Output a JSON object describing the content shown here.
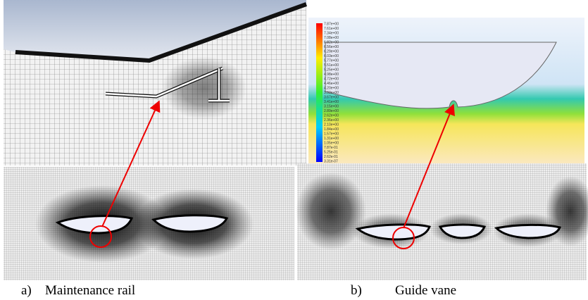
{
  "panels": {
    "left": {
      "label": "a)",
      "caption": "Maintenance rail"
    },
    "right": {
      "label": "b)",
      "caption": "Guide vane"
    }
  },
  "colorbar": {
    "labels": [
      "7.87e+00",
      "7.61e+00",
      "7.34e+00",
      "7.08e+00",
      "6.82e+00",
      "6.56e+00",
      "6.29e+00",
      "6.03e+00",
      "5.77e+00",
      "5.51e+00",
      "5.25e+00",
      "4.98e+00",
      "4.72e+00",
      "4.46e+00",
      "4.20e+00",
      "3.93e+00",
      "3.67e+00",
      "3.41e+00",
      "3.15e+00",
      "2.89e+00",
      "2.62e+00",
      "2.36e+00",
      "2.10e+00",
      "1.84e+00",
      "1.57e+00",
      "1.31e+00",
      "1.05e+00",
      "7.87e-01",
      "5.25e-01",
      "2.62e-01",
      "3.31e-07"
    ]
  }
}
